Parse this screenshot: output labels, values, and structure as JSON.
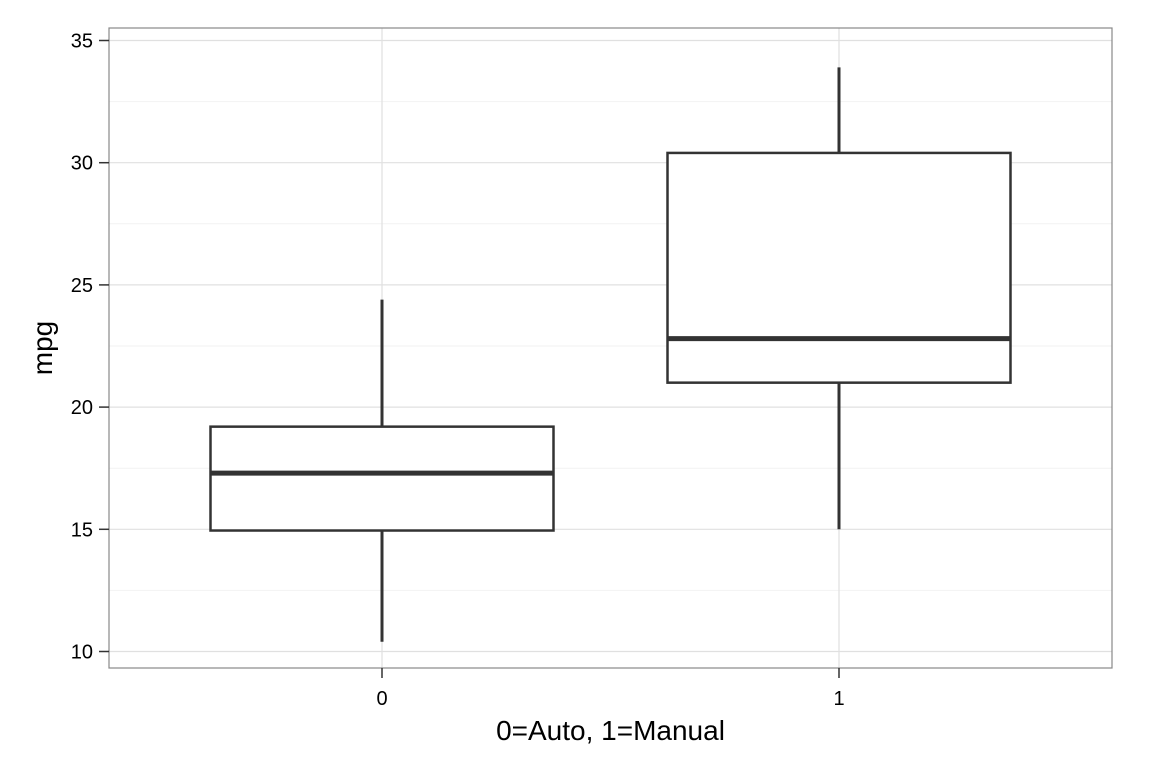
{
  "chart_data": {
    "type": "boxplot",
    "title": "",
    "xlabel": "0=Auto, 1=Manual",
    "ylabel": "mpg",
    "categories": [
      "0",
      "1"
    ],
    "ylim": [
      9.25,
      35
    ],
    "yticks": [
      10,
      15,
      20,
      25,
      30,
      35
    ],
    "grid": true,
    "boxes": [
      {
        "category": "0",
        "whisker_low": 10.4,
        "q1": 14.95,
        "median": 17.3,
        "q3": 19.2,
        "whisker_high": 24.4
      },
      {
        "category": "1",
        "whisker_low": 15.0,
        "q1": 21.0,
        "median": 22.8,
        "q3": 30.4,
        "whisker_high": 33.9
      }
    ],
    "colors": {
      "box_stroke": "#333333",
      "grid_major": "#e0e0e0",
      "grid_minor": "#f2f2f2",
      "panel_border": "#888888"
    }
  }
}
